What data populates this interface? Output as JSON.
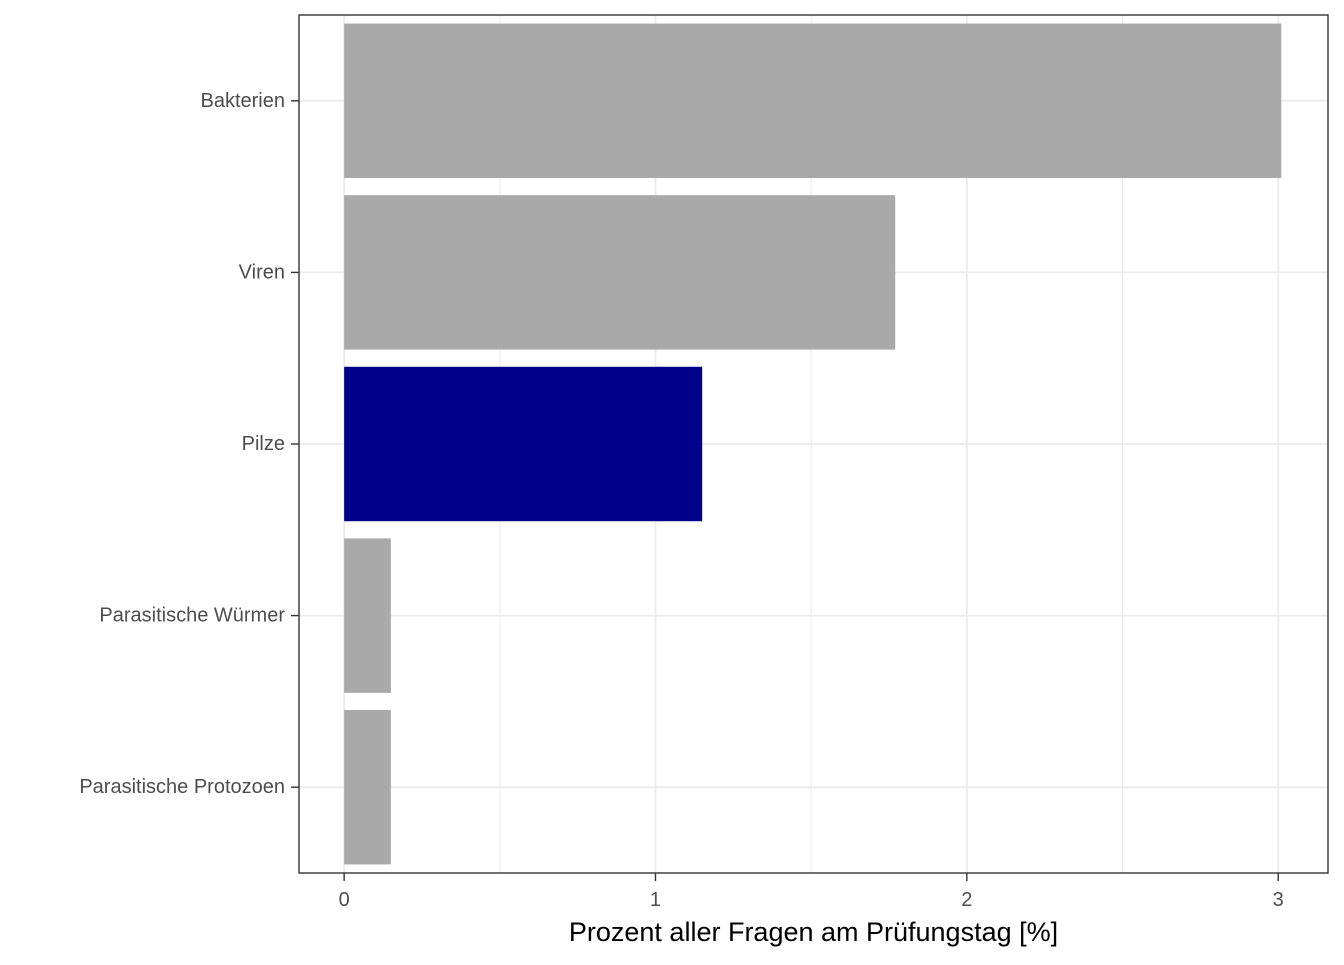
{
  "chart_data": {
    "type": "bar",
    "orientation": "horizontal",
    "title": "",
    "xlabel": "Prozent aller Fragen am Prüfungstag [%]",
    "ylabel": "",
    "categories": [
      "Bakterien",
      "Viren",
      "Pilze",
      "Parasitische Würmer",
      "Parasitische Protozoen"
    ],
    "values": [
      3.01,
      1.77,
      1.15,
      0.15,
      0.15
    ],
    "highlighted_category": "Pilze",
    "colors": {
      "default_bar": "#a9a9a9",
      "highlight_bar": "#00008b",
      "grid": "#ebebeb",
      "panel_border": "#333333"
    },
    "xlim": [
      -0.145,
      3.16
    ],
    "xticks": [
      0,
      1,
      2,
      3
    ],
    "xtick_labels": [
      "0",
      "1",
      "2",
      "3"
    ],
    "grid": true,
    "legend": "none"
  }
}
